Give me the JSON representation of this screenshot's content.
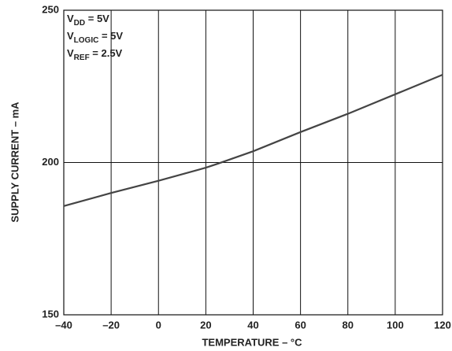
{
  "chart_data": {
    "type": "line",
    "x_label": "TEMPERATURE – °C",
    "y_label": "SUPPLY CURRENT – mA",
    "annotations": [
      {
        "main": "V",
        "sub": "DD",
        "rest": " = 5V"
      },
      {
        "main": "V",
        "sub": "LOGIC",
        "rest": " = 5V"
      },
      {
        "main": "V",
        "sub": "REF",
        "rest": " = 2.5V"
      }
    ],
    "x": [
      -40,
      -20,
      0,
      20,
      25,
      40,
      60,
      80,
      100,
      120
    ],
    "series": [
      {
        "name": "Supply current",
        "color": "#444444",
        "values": [
          185.7,
          190,
          194,
          198.3,
          199.6,
          203.7,
          210,
          216,
          222.4,
          228.8
        ]
      }
    ],
    "xlim": [
      -40,
      120
    ],
    "xticks": [
      {
        "value": -40,
        "label": "–40"
      },
      {
        "value": -20,
        "label": "–20"
      },
      0,
      20,
      40,
      60,
      80,
      100,
      120
    ],
    "ylim": [
      150,
      250
    ],
    "yticks": [
      150,
      200,
      250
    ],
    "grid": true
  }
}
